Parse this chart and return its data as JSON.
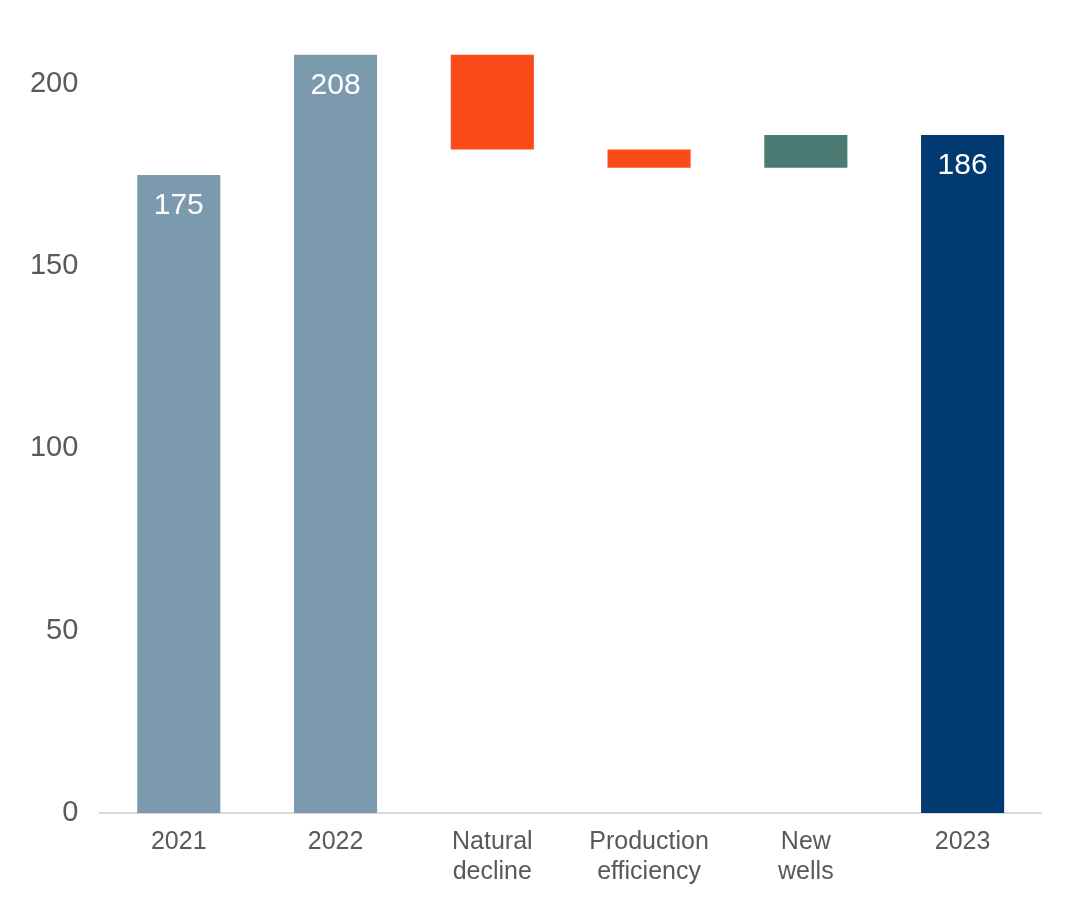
{
  "chart_data": {
    "type": "bar",
    "categories": [
      "2021",
      "2022",
      "Natural decline",
      "Production efficiency",
      "New wells",
      "2023"
    ],
    "values": [
      175,
      208,
      -26,
      -5,
      9,
      186
    ],
    "base": [
      0,
      0,
      208,
      182,
      177,
      0
    ],
    "colors": [
      "#7b9aae",
      "#7b9aae",
      "#fc4a1a",
      "#fc4a1a",
      "#4a7a72",
      "#003a70"
    ],
    "value_labels": [
      "175",
      "208",
      null,
      null,
      null,
      "186"
    ],
    "ylim": [
      0,
      210
    ],
    "yticks": [
      0,
      50,
      100,
      150,
      200
    ],
    "grid": false,
    "legend": false
  }
}
